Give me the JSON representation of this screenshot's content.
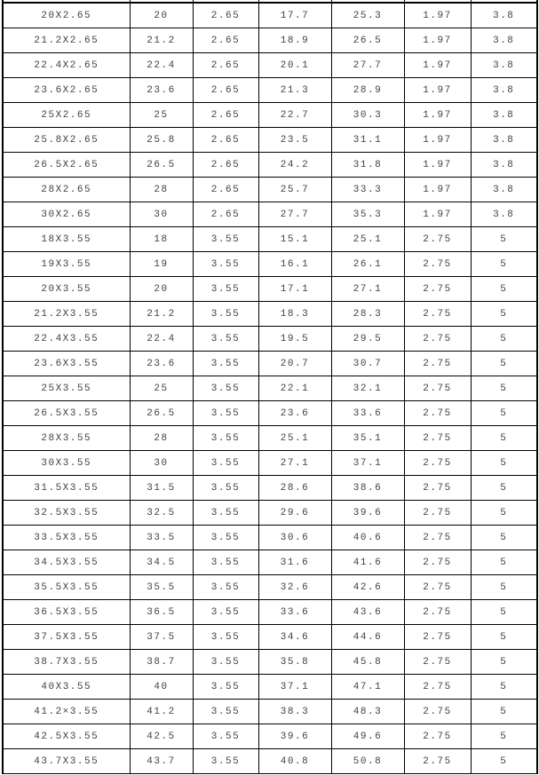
{
  "colors": {
    "background": "#ffffff",
    "border": "#000000",
    "text": "#40424b"
  },
  "table": {
    "rows": [
      [
        "20X2.65",
        "20",
        "2.65",
        "17.7",
        "25.3",
        "1.97",
        "3.8"
      ],
      [
        "21.2X2.65",
        "21.2",
        "2.65",
        "18.9",
        "26.5",
        "1.97",
        "3.8"
      ],
      [
        "22.4X2.65",
        "22.4",
        "2.65",
        "20.1",
        "27.7",
        "1.97",
        "3.8"
      ],
      [
        "23.6X2.65",
        "23.6",
        "2.65",
        "21.3",
        "28.9",
        "1.97",
        "3.8"
      ],
      [
        "25X2.65",
        "25",
        "2.65",
        "22.7",
        "30.3",
        "1.97",
        "3.8"
      ],
      [
        "25.8X2.65",
        "25.8",
        "2.65",
        "23.5",
        "31.1",
        "1.97",
        "3.8"
      ],
      [
        "26.5X2.65",
        "26.5",
        "2.65",
        "24.2",
        "31.8",
        "1.97",
        "3.8"
      ],
      [
        "28X2.65",
        "28",
        "2.65",
        "25.7",
        "33.3",
        "1.97",
        "3.8"
      ],
      [
        "30X2.65",
        "30",
        "2.65",
        "27.7",
        "35.3",
        "1.97",
        "3.8"
      ],
      [
        "18X3.55",
        "18",
        "3.55",
        "15.1",
        "25.1",
        "2.75",
        "5"
      ],
      [
        "19X3.55",
        "19",
        "3.55",
        "16.1",
        "26.1",
        "2.75",
        "5"
      ],
      [
        "20X3.55",
        "20",
        "3.55",
        "17.1",
        "27.1",
        "2.75",
        "5"
      ],
      [
        "21.2X3.55",
        "21.2",
        "3.55",
        "18.3",
        "28.3",
        "2.75",
        "5"
      ],
      [
        "22.4X3.55",
        "22.4",
        "3.55",
        "19.5",
        "29.5",
        "2.75",
        "5"
      ],
      [
        "23.6X3.55",
        "23.6",
        "3.55",
        "20.7",
        "30.7",
        "2.75",
        "5"
      ],
      [
        "25X3.55",
        "25",
        "3.55",
        "22.1",
        "32.1",
        "2.75",
        "5"
      ],
      [
        "26.5X3.55",
        "26.5",
        "3.55",
        "23.6",
        "33.6",
        "2.75",
        "5"
      ],
      [
        "28X3.55",
        "28",
        "3.55",
        "25.1",
        "35.1",
        "2.75",
        "5"
      ],
      [
        "30X3.55",
        "30",
        "3.55",
        "27.1",
        "37.1",
        "2.75",
        "5"
      ],
      [
        "31.5X3.55",
        "31.5",
        "3.55",
        "28.6",
        "38.6",
        "2.75",
        "5"
      ],
      [
        "32.5X3.55",
        "32.5",
        "3.55",
        "29.6",
        "39.6",
        "2.75",
        "5"
      ],
      [
        "33.5X3.55",
        "33.5",
        "3.55",
        "30.6",
        "40.6",
        "2.75",
        "5"
      ],
      [
        "34.5X3.55",
        "34.5",
        "3.55",
        "31.6",
        "41.6",
        "2.75",
        "5"
      ],
      [
        "35.5X3.55",
        "35.5",
        "3.55",
        "32.6",
        "42.6",
        "2.75",
        "5"
      ],
      [
        "36.5X3.55",
        "36.5",
        "3.55",
        "33.6",
        "43.6",
        "2.75",
        "5"
      ],
      [
        "37.5X3.55",
        "37.5",
        "3.55",
        "34.6",
        "44.6",
        "2.75",
        "5"
      ],
      [
        "38.7X3.55",
        "38.7",
        "3.55",
        "35.8",
        "45.8",
        "2.75",
        "5"
      ],
      [
        "40X3.55",
        "40",
        "3.55",
        "37.1",
        "47.1",
        "2.75",
        "5"
      ],
      [
        "41.2×3.55",
        "41.2",
        "3.55",
        "38.3",
        "48.3",
        "2.75",
        "5"
      ],
      [
        "42.5X3.55",
        "42.5",
        "3.55",
        "39.6",
        "49.6",
        "2.75",
        "5"
      ],
      [
        "43.7X3.55",
        "43.7",
        "3.55",
        "40.8",
        "50.8",
        "2.75",
        "5"
      ]
    ]
  }
}
